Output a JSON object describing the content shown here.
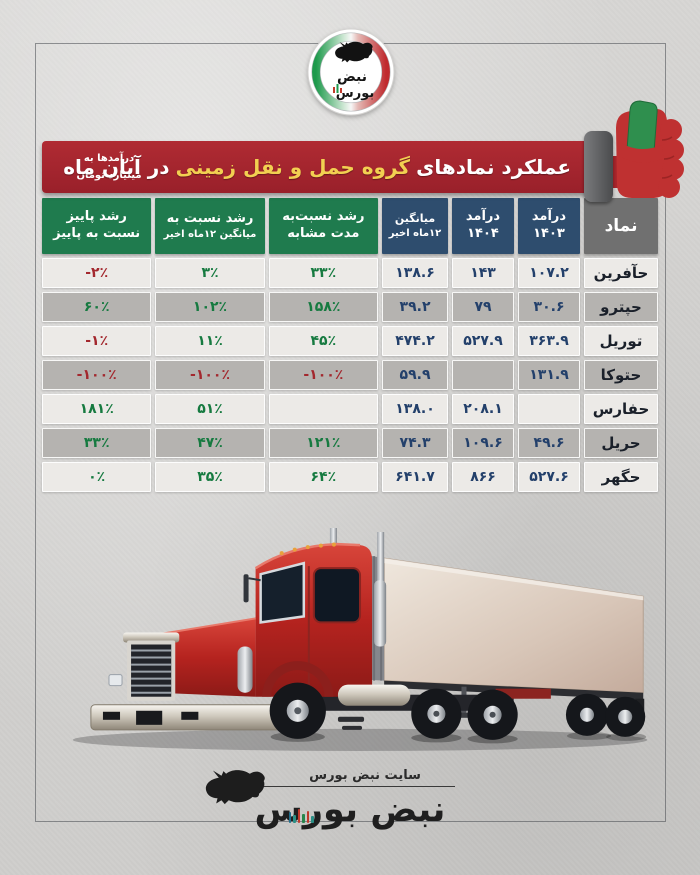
{
  "top_logo": {
    "brand": "نبض بورس",
    "text_line1": "نبض",
    "text_line2": "بورس",
    "ring_colors": [
      "#1e9a4c",
      "#f7f7f7",
      "#c02a2e"
    ]
  },
  "banner": {
    "note_line1": "درآمدها به",
    "note_line2": "میلیارد تومان",
    "title_white_start": "عملکرد نمادهای",
    "title_yellow": "گروه حمل و نقل زمینی",
    "title_white_end": "در آبان ماه",
    "bg_color": "#a5242c",
    "accent_color": "#f2d051",
    "icon": "fist-holding-green-banknote"
  },
  "table": {
    "column_order": [
      "symbol",
      "rev1403",
      "rev1404",
      "avg12",
      "g_similar",
      "g_avg",
      "g_fall"
    ],
    "headers": {
      "symbol": {
        "lines": [
          "نماد"
        ],
        "bg": "gray"
      },
      "rev1403": {
        "lines": [
          "درآمد",
          "۱۴۰۳"
        ],
        "bg": "blue"
      },
      "rev1404": {
        "lines": [
          "درآمد",
          "۱۴۰۴"
        ],
        "bg": "blue"
      },
      "avg12": {
        "lines": [
          "میانگین",
          "۱۲ماه اخیر"
        ],
        "bg": "blue",
        "compact": true
      },
      "g_similar": {
        "lines": [
          "رشد نسبت‌به",
          "مدت مشابه"
        ],
        "bg": "green"
      },
      "g_avg": {
        "lines": [
          "رشد نسبت به",
          "میانگین ۱۲ماه اخیر"
        ],
        "bg": "green",
        "compact2": true
      },
      "g_fall": {
        "lines": [
          "رشد پاییز",
          "نسبت به پاییز"
        ],
        "bg": "green"
      }
    },
    "rows": [
      {
        "symbol": "حآفرین",
        "rev1403": "۱۰۷.۲",
        "rev1404": "۱۴۳",
        "avg12": "۱۳۸.۶",
        "g_similar": {
          "text": "۳۳٪",
          "trend": "pos"
        },
        "g_avg": {
          "text": "۳٪",
          "trend": "pos"
        },
        "g_fall": {
          "text": "-۲٪",
          "trend": "neg"
        }
      },
      {
        "symbol": "حپترو",
        "rev1403": "۳۰.۶",
        "rev1404": "۷۹",
        "avg12": "۳۹.۲",
        "g_similar": {
          "text": "۱۵۸٪",
          "trend": "pos"
        },
        "g_avg": {
          "text": "۱۰۲٪",
          "trend": "pos"
        },
        "g_fall": {
          "text": "۶۰٪",
          "trend": "pos"
        }
      },
      {
        "symbol": "توریل",
        "rev1403": "۳۶۳.۹",
        "rev1404": "۵۲۷.۹",
        "avg12": "۴۷۴.۲",
        "g_similar": {
          "text": "۴۵٪",
          "trend": "pos"
        },
        "g_avg": {
          "text": "۱۱٪",
          "trend": "pos"
        },
        "g_fall": {
          "text": "-۱٪",
          "trend": "neg"
        }
      },
      {
        "symbol": "حتوکا",
        "rev1403": "۱۳۱.۹",
        "rev1404": "",
        "avg12": "۵۹.۹",
        "g_similar": {
          "text": "-۱۰۰٪",
          "trend": "neg"
        },
        "g_avg": {
          "text": "-۱۰۰٪",
          "trend": "neg"
        },
        "g_fall": {
          "text": "-۱۰۰٪",
          "trend": "neg"
        }
      },
      {
        "symbol": "حفارس",
        "rev1403": "",
        "rev1404": "۲۰۸.۱",
        "avg12": "۱۳۸.۰",
        "g_similar": {
          "text": "",
          "trend": "none"
        },
        "g_avg": {
          "text": "۵۱٪",
          "trend": "pos"
        },
        "g_fall": {
          "text": "۱۸۱٪",
          "trend": "pos"
        }
      },
      {
        "symbol": "حریل",
        "rev1403": "۴۹.۶",
        "rev1404": "۱۰۹.۶",
        "avg12": "۷۴.۳",
        "g_similar": {
          "text": "۱۲۱٪",
          "trend": "pos"
        },
        "g_avg": {
          "text": "۴۷٪",
          "trend": "pos"
        },
        "g_fall": {
          "text": "۳۳٪",
          "trend": "pos"
        }
      },
      {
        "symbol": "حگهر",
        "rev1403": "۵۲۷.۶",
        "rev1404": "۸۶۶",
        "avg12": "۶۴۱.۷",
        "g_similar": {
          "text": "۶۴٪",
          "trend": "pos"
        },
        "g_avg": {
          "text": "۳۵٪",
          "trend": "pos"
        },
        "g_fall": {
          "text": "۰٪",
          "trend": "pos"
        }
      }
    ],
    "colors": {
      "blue_header": "#2e4d6e",
      "green_header": "#1f7b4e",
      "gray_header": "#707070",
      "row_light": "#eceae7",
      "row_dark": "#b5b3b0",
      "value_navy": "#23406b",
      "positive_green": "#167a40",
      "negative_red": "#a3282e"
    }
  },
  "chart_data": {
    "type": "table",
    "title": "عملکرد نمادهای گروه حمل و نقل زمینی در آبان ماه",
    "unit_note": "درآمدها به میلیارد تومان",
    "columns": [
      "نماد",
      "درآمد ۱۴۰۳",
      "درآمد ۱۴۰۴",
      "میانگین ۱۲ماه اخیر",
      "رشد نسبت‌به مدت مشابه",
      "رشد نسبت به میانگین ۱۲ماه اخیر",
      "رشد پاییز نسبت به پاییز"
    ],
    "rows": [
      [
        "حآفرین",
        107.2,
        143,
        138.6,
        "33%",
        "3%",
        "-2%"
      ],
      [
        "حپترو",
        30.6,
        79,
        39.2,
        "158%",
        "102%",
        "60%"
      ],
      [
        "توریل",
        363.9,
        527.9,
        474.2,
        "45%",
        "11%",
        "-1%"
      ],
      [
        "حتوکا",
        131.9,
        null,
        59.9,
        "-100%",
        "-100%",
        "-100%"
      ],
      [
        "حفارس",
        null,
        208.1,
        138.0,
        null,
        "51%",
        "181%"
      ],
      [
        "حریل",
        49.6,
        109.6,
        74.3,
        "121%",
        "47%",
        "33%"
      ],
      [
        "حگهر",
        527.6,
        866,
        641.7,
        "64%",
        "35%",
        "0%"
      ]
    ]
  },
  "footer": {
    "site_label": "سایت نبض بورس",
    "logo_text": "نبض بورس"
  }
}
